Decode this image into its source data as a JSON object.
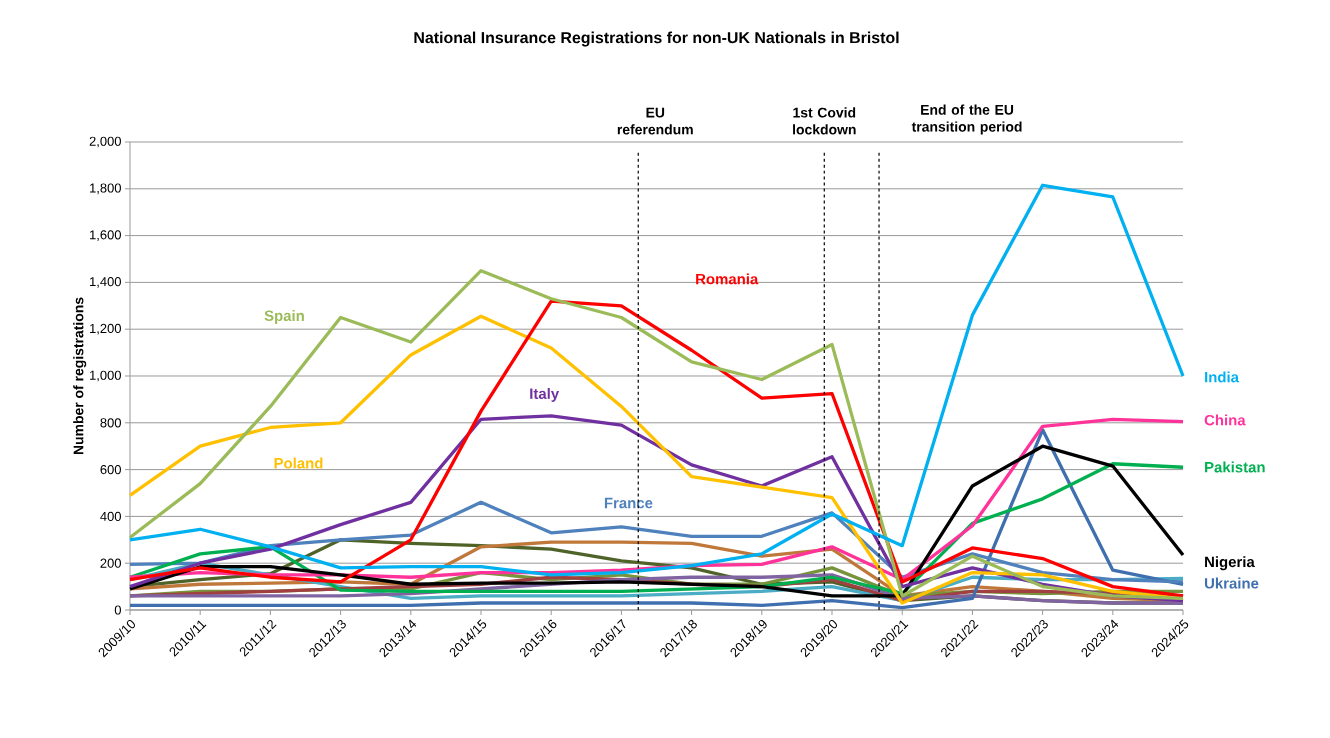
{
  "chart_data": {
    "type": "line",
    "title": "National Insurance Registrations for non-UK Nationals in Bristol",
    "ylabel": "Number of registrations",
    "categories": [
      "2009/10",
      "2010/11",
      "2011/12",
      "2012/13",
      "2013/14",
      "2014/15",
      "2015/16",
      "2016/17",
      "2017/18",
      "2018/19",
      "2019/20",
      "2020/21",
      "2021/22",
      "2022/23",
      "2023/24",
      "2024/25"
    ],
    "ylim": [
      0,
      2000
    ],
    "yticks": [
      0,
      200,
      400,
      600,
      800,
      {
        "value": 1000,
        "label": "1,000"
      },
      {
        "value": 1200,
        "label": "1,200"
      },
      {
        "value": 1400,
        "label": "1,400"
      },
      {
        "value": 1600,
        "label": "1,600"
      },
      {
        "value": 1800,
        "label": "1,800"
      },
      {
        "value": 2000,
        "label": "2,000"
      }
    ],
    "grid": "y",
    "marker": "none",
    "line_style": "solid",
    "series": [
      {
        "color": "#4f6228",
        "values": [
          100,
          130,
          155,
          300,
          285,
          275,
          260,
          210,
          180,
          110,
          120,
          40,
          60,
          40,
          30,
          30
        ]
      },
      {
        "color": "#c0783a",
        "values": [
          90,
          110,
          115,
          120,
          110,
          270,
          290,
          290,
          285,
          230,
          260,
          60,
          100,
          80,
          50,
          40
        ]
      },
      {
        "color": "#4bacc6",
        "values": [
          130,
          200,
          150,
          100,
          50,
          60,
          60,
          60,
          70,
          80,
          100,
          40,
          140,
          130,
          130,
          135
        ]
      },
      {
        "color": "#77933c",
        "values": [
          60,
          80,
          80,
          90,
          90,
          160,
          130,
          150,
          110,
          110,
          180,
          60,
          80,
          70,
          80,
          80
        ]
      },
      {
        "color": "#a04040",
        "values": [
          60,
          70,
          80,
          90,
          100,
          110,
          140,
          130,
          110,
          100,
          130,
          40,
          80,
          80,
          70,
          60
        ]
      },
      {
        "color": "#8064a2",
        "values": [
          60,
          60,
          60,
          60,
          70,
          90,
          110,
          130,
          140,
          140,
          150,
          50,
          60,
          40,
          30,
          30
        ]
      },
      {
        "name": "Ukraine",
        "color": "#3f6fae",
        "values": [
          20,
          20,
          20,
          20,
          20,
          30,
          30,
          30,
          30,
          20,
          40,
          10,
          50,
          770,
          170,
          110
        ]
      },
      {
        "name": "France",
        "color": "#4f81bd",
        "values": [
          195,
          200,
          275,
          300,
          320,
          460,
          330,
          355,
          315,
          315,
          415,
          140,
          240,
          160,
          130,
          120
        ]
      },
      {
        "name": "Pakistan",
        "color": "#00b050",
        "values": [
          140,
          240,
          270,
          85,
          80,
          80,
          80,
          80,
          90,
          100,
          140,
          70,
          370,
          475,
          625,
          610
        ]
      },
      {
        "name": "China",
        "color": "#ff3399",
        "values": [
          140,
          160,
          150,
          150,
          140,
          160,
          160,
          170,
          190,
          195,
          270,
          130,
          360,
          785,
          815,
          805
        ]
      },
      {
        "name": "Nigeria",
        "color": "#000000",
        "values": [
          90,
          185,
          185,
          150,
          110,
          115,
          115,
          120,
          110,
          100,
          60,
          60,
          530,
          700,
          615,
          235
        ]
      },
      {
        "name": "Italy",
        "color": "#7030a0",
        "values": [
          100,
          200,
          260,
          365,
          460,
          815,
          830,
          790,
          620,
          530,
          655,
          100,
          180,
          110,
          60,
          40
        ]
      },
      {
        "name": "Poland",
        "color": "#ffc000",
        "values": [
          490,
          700,
          780,
          800,
          1090,
          1255,
          1120,
          870,
          570,
          525,
          480,
          30,
          160,
          150,
          80,
          50
        ]
      },
      {
        "name": "Romania",
        "color": "#ff0000",
        "values": [
          130,
          180,
          140,
          120,
          300,
          850,
          1320,
          1300,
          1110,
          905,
          925,
          120,
          265,
          220,
          100,
          60
        ]
      },
      {
        "name": "Spain",
        "color": "#9bbb59",
        "values": [
          310,
          540,
          870,
          1250,
          1145,
          1450,
          1330,
          1250,
          1060,
          985,
          1135,
          60,
          230,
          100,
          60,
          50
        ]
      },
      {
        "name": "India",
        "color": "#00b0f0",
        "values": [
          300,
          345,
          270,
          180,
          185,
          185,
          150,
          160,
          190,
          240,
          410,
          275,
          1260,
          1815,
          1765,
          1000
        ]
      }
    ],
    "ref_lines": [
      {
        "axis": "x",
        "value": "2016/17",
        "label": "EU referendum",
        "color": "#000000",
        "line_style": "dashed"
      },
      {
        "axis": "x",
        "value": "2019/20",
        "label": "1st Covid lockdown",
        "color": "#000000",
        "line_style": "dashed"
      },
      {
        "axis": "x",
        "value": "2020/21",
        "label": "End of the EU transition period",
        "color": "#000000",
        "line_style": "dashed"
      }
    ]
  }
}
